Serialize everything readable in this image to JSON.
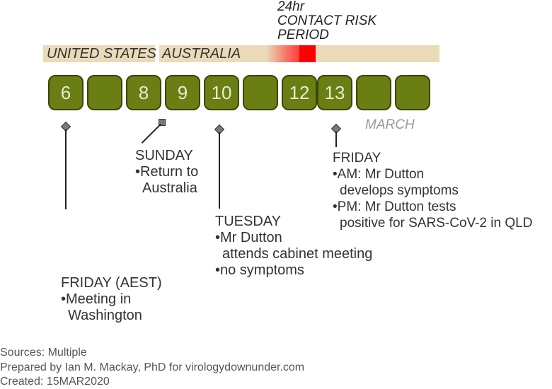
{
  "risk_period": {
    "line1": "24hr",
    "line2": "CONTACT RISK",
    "line3": "PERIOD"
  },
  "location_bar": {
    "location1": "UNITED STATES",
    "location2": "AUSTRALIA",
    "risk_color": "#ff0000",
    "bar_color": "#eadbb8"
  },
  "days": [
    "6",
    "",
    "8",
    "9",
    "10",
    "",
    "12",
    "13",
    "",
    ""
  ],
  "day_color": "#6b7e14",
  "month": "MARCH",
  "events": {
    "friday_aest": {
      "heading": "FRIDAY (AEST)",
      "bullet1": "•Meeting in",
      "bullet1_cont": "Washington"
    },
    "sunday": {
      "heading": "SUNDAY",
      "bullet1": "•Return to",
      "bullet1_cont": "Australia"
    },
    "tuesday": {
      "heading": "TUESDAY",
      "bullet1": "•Mr Dutton",
      "bullet1_cont": "attends cabinet meeting",
      "bullet2": "•no symptoms"
    },
    "friday": {
      "heading": "FRIDAY",
      "bullet1": "•AM: Mr Dutton",
      "bullet1_cont": "develops symptoms",
      "bullet2": "•PM: Mr Dutton tests",
      "bullet2_cont": "positive for SARS-CoV-2 in QLD"
    }
  },
  "footer": {
    "sources": "Sources: Multiple",
    "prepared": "Prepared by Ian M. Mackay, PhD for virologydownunder.com",
    "created": "Created: 15MAR2020"
  }
}
